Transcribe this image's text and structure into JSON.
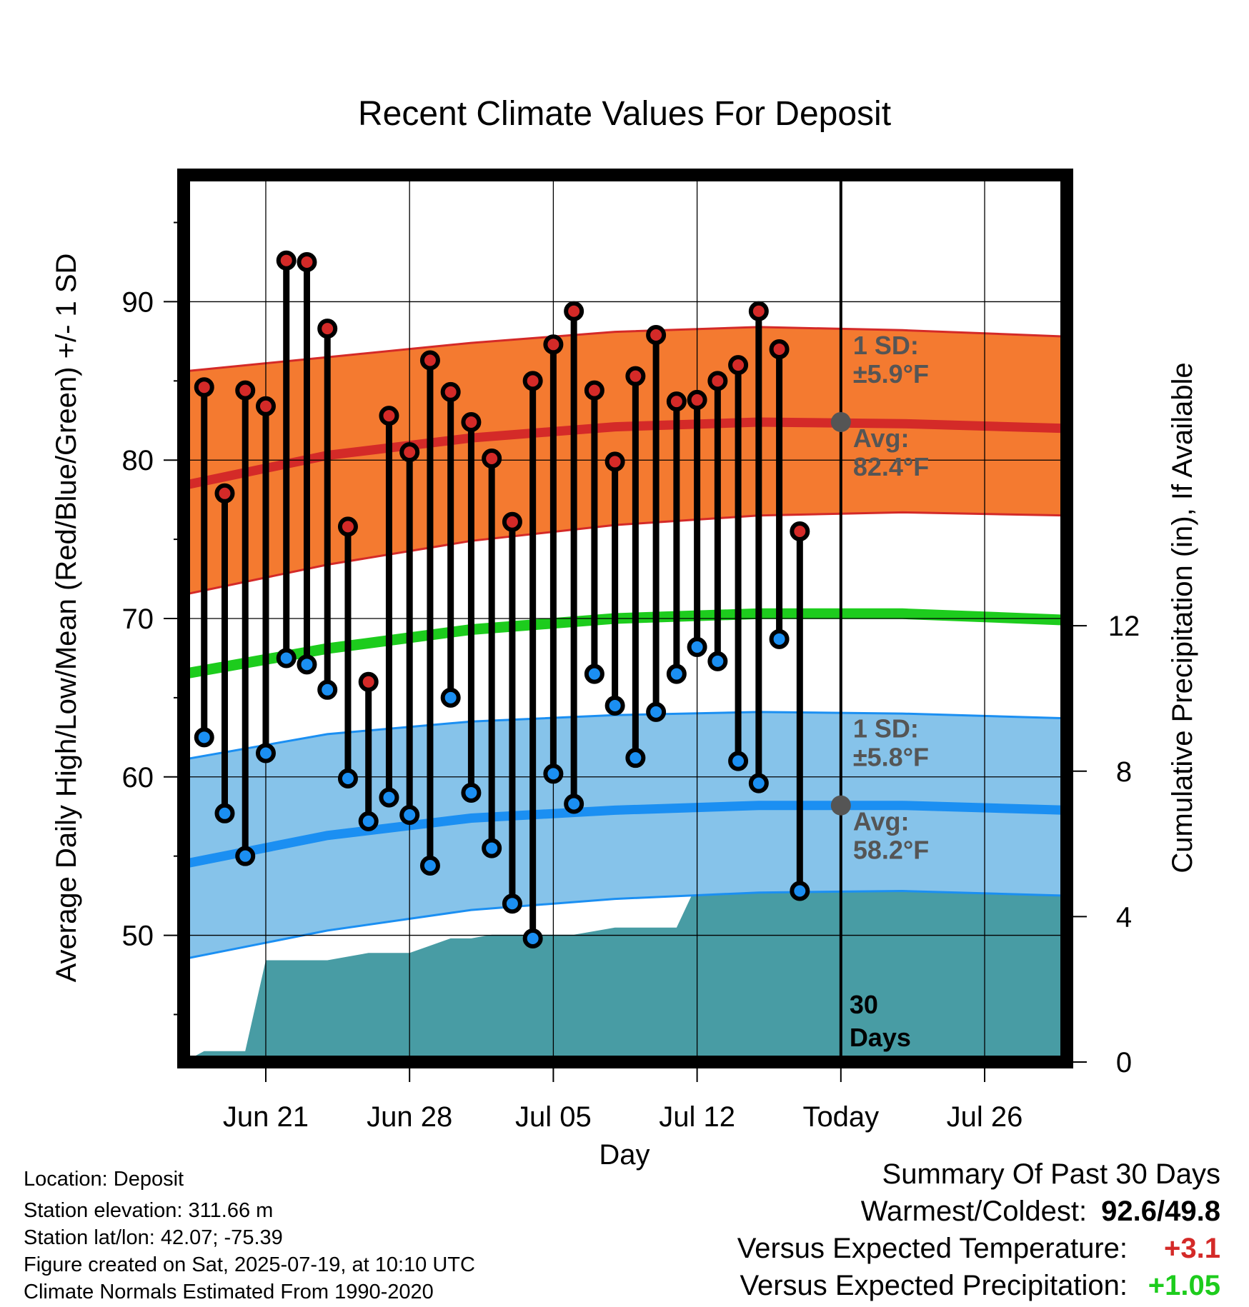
{
  "chart_data": {
    "type": "line",
    "title": "Recent Climate Values For Deposit",
    "xlabel": "Day",
    "ylabel": "Average Daily High/Low/Mean (Red/Blue/Green) +/- 1 SD",
    "y2label": "Cumulative Precipitation (in), If Available",
    "ylim": [
      42,
      98
    ],
    "y2lim": [
      0,
      24.4
    ],
    "yticks": [
      50,
      60,
      70,
      80,
      90
    ],
    "y2ticks": [
      0,
      4,
      8,
      12
    ],
    "x_tick_labels": [
      {
        "date": "2025-06-21",
        "label": "Jun 21"
      },
      {
        "date": "2025-06-28",
        "label": "Jun 28"
      },
      {
        "date": "2025-07-05",
        "label": "Jul 05"
      },
      {
        "date": "2025-07-12",
        "label": "Jul 12"
      },
      {
        "date": "2025-07-19",
        "label": "Today"
      },
      {
        "date": "2025-07-26",
        "label": "Jul 26"
      }
    ],
    "xlim": [
      "2025-06-17",
      "2025-07-30"
    ],
    "today": "2025-07-19",
    "grid": true,
    "observed": [
      {
        "date": "2025-06-18",
        "high": 84.6,
        "low": 62.5
      },
      {
        "date": "2025-06-19",
        "high": 77.9,
        "low": 57.7
      },
      {
        "date": "2025-06-20",
        "high": 84.4,
        "low": 55.0
      },
      {
        "date": "2025-06-21",
        "high": 83.4,
        "low": 61.5
      },
      {
        "date": "2025-06-22",
        "high": 92.6,
        "low": 67.5
      },
      {
        "date": "2025-06-23",
        "high": 92.5,
        "low": 67.1
      },
      {
        "date": "2025-06-24",
        "high": 88.3,
        "low": 65.5
      },
      {
        "date": "2025-06-25",
        "high": 75.8,
        "low": 59.9
      },
      {
        "date": "2025-06-26",
        "high": 66.0,
        "low": 57.2
      },
      {
        "date": "2025-06-27",
        "high": 82.8,
        "low": 58.7
      },
      {
        "date": "2025-06-28",
        "high": 80.5,
        "low": 57.6
      },
      {
        "date": "2025-06-29",
        "high": 86.3,
        "low": 54.4
      },
      {
        "date": "2025-06-30",
        "high": 84.3,
        "low": 65.0
      },
      {
        "date": "2025-07-01",
        "high": 82.4,
        "low": 59.0
      },
      {
        "date": "2025-07-02",
        "high": 80.1,
        "low": 55.5
      },
      {
        "date": "2025-07-03",
        "high": 76.1,
        "low": 52.0
      },
      {
        "date": "2025-07-04",
        "high": 85.0,
        "low": 49.8
      },
      {
        "date": "2025-07-05",
        "high": 87.3,
        "low": 60.2
      },
      {
        "date": "2025-07-06",
        "high": 89.4,
        "low": 58.3
      },
      {
        "date": "2025-07-07",
        "high": 84.4,
        "low": 66.5
      },
      {
        "date": "2025-07-08",
        "high": 79.9,
        "low": 64.5
      },
      {
        "date": "2025-07-09",
        "high": 85.3,
        "low": 61.2
      },
      {
        "date": "2025-07-10",
        "high": 87.9,
        "low": 64.1
      },
      {
        "date": "2025-07-11",
        "high": 83.7,
        "low": 66.5
      },
      {
        "date": "2025-07-12",
        "high": 83.8,
        "low": 68.2
      },
      {
        "date": "2025-07-13",
        "high": 85.0,
        "low": 67.3
      },
      {
        "date": "2025-07-14",
        "high": 86.0,
        "low": 61.0
      },
      {
        "date": "2025-07-15",
        "high": 89.4,
        "low": 59.6
      },
      {
        "date": "2025-07-16",
        "high": 87.0,
        "low": 68.7
      },
      {
        "date": "2025-07-17",
        "high": 75.5,
        "low": 52.8
      }
    ],
    "normal_high": {
      "dates": [
        "2025-06-17",
        "2025-06-24",
        "2025-07-01",
        "2025-07-08",
        "2025-07-15",
        "2025-07-22",
        "2025-07-30"
      ],
      "mean": [
        78.4,
        80.3,
        81.4,
        82.1,
        82.4,
        82.3,
        82.0
      ],
      "upper": [
        85.6,
        86.5,
        87.4,
        88.1,
        88.4,
        88.2,
        87.8
      ],
      "lower": [
        71.5,
        73.4,
        74.9,
        75.9,
        76.5,
        76.7,
        76.5
      ]
    },
    "normal_mean": {
      "dates": [
        "2025-06-17",
        "2025-06-24",
        "2025-07-01",
        "2025-07-08",
        "2025-07-15",
        "2025-07-22",
        "2025-07-30"
      ],
      "mean": [
        66.5,
        68.1,
        69.3,
        70.0,
        70.3,
        70.3,
        69.9
      ]
    },
    "normal_low": {
      "dates": [
        "2025-06-17",
        "2025-06-24",
        "2025-07-01",
        "2025-07-08",
        "2025-07-15",
        "2025-07-22",
        "2025-07-30"
      ],
      "mean": [
        54.5,
        56.3,
        57.4,
        57.9,
        58.2,
        58.2,
        57.9
      ],
      "upper": [
        61.1,
        62.7,
        63.5,
        63.9,
        64.1,
        64.0,
        63.7
      ],
      "lower": [
        48.5,
        50.3,
        51.6,
        52.3,
        52.7,
        52.8,
        52.5
      ]
    },
    "precip_cumulative": {
      "dates": [
        "2025-06-17",
        "2025-06-18",
        "2025-06-19",
        "2025-06-20",
        "2025-06-21",
        "2025-06-22",
        "2025-06-23",
        "2025-06-24",
        "2025-06-25",
        "2025-06-26",
        "2025-06-27",
        "2025-06-28",
        "2025-06-29",
        "2025-06-30",
        "2025-07-01",
        "2025-07-02",
        "2025-07-03",
        "2025-07-04",
        "2025-07-05",
        "2025-07-06",
        "2025-07-07",
        "2025-07-08",
        "2025-07-09",
        "2025-07-10",
        "2025-07-11",
        "2025-07-12",
        "2025-07-13",
        "2025-07-14",
        "2025-07-15",
        "2025-07-16",
        "2025-07-17",
        "2025-07-18",
        "2025-07-19",
        "2025-07-30"
      ],
      "values": [
        0,
        0.3,
        0.3,
        0.3,
        2.8,
        2.8,
        2.8,
        2.8,
        2.9,
        3.0,
        3.0,
        3.0,
        3.2,
        3.4,
        3.4,
        3.5,
        3.5,
        3.5,
        3.5,
        3.5,
        3.6,
        3.7,
        3.7,
        3.7,
        3.7,
        4.9,
        5.4,
        5.4,
        5.4,
        5.4,
        5.4,
        5.4,
        5.4,
        5.4
      ]
    },
    "annotations": {
      "high_sd_label": "1 SD:",
      "high_sd_value": "±5.9°F",
      "high_avg_label": "Avg:",
      "high_avg_value": "82.4°F",
      "low_sd_label": "1 SD:",
      "low_sd_value": "±5.8°F",
      "low_avg_label": "Avg:",
      "low_avg_value": "58.2°F",
      "today_avg_high": 82.4,
      "today_avg_low": 58.2,
      "days_count": "30",
      "days_label": "Days"
    },
    "colors": {
      "high_band": "#f47a30",
      "high_line": "#d42a28",
      "mean_line": "#1dcc1d",
      "low_band": "#86c3ea",
      "low_line": "#1b8ff2",
      "precip": "#489ca4",
      "high_dot": "#d42a28",
      "low_dot": "#1b8ff2",
      "today_dot": "#555555",
      "annotation_text": "#555555"
    }
  },
  "info": {
    "location": "Location: Deposit",
    "elevation": "Station elevation: 311.66 m",
    "latlon": "Station lat/lon: 42.07; -75.39",
    "created": "Figure created on Sat, 2025-07-19, at 10:10 UTC",
    "normals": "Climate Normals Estimated From 1990-2020"
  },
  "summary": {
    "heading": "Summary Of Past 30 Days",
    "warm_cold_label": "Warmest/Coldest:",
    "warmest": "92.6",
    "sep": "/",
    "coldest": "49.8",
    "temp_label": "Versus Expected Temperature:",
    "temp_value": "+3.1",
    "temp_color": "#d42a28",
    "precip_label": "Versus Expected Precipitation:",
    "precip_value": "+1.05",
    "precip_color": "#1dcc1d"
  }
}
